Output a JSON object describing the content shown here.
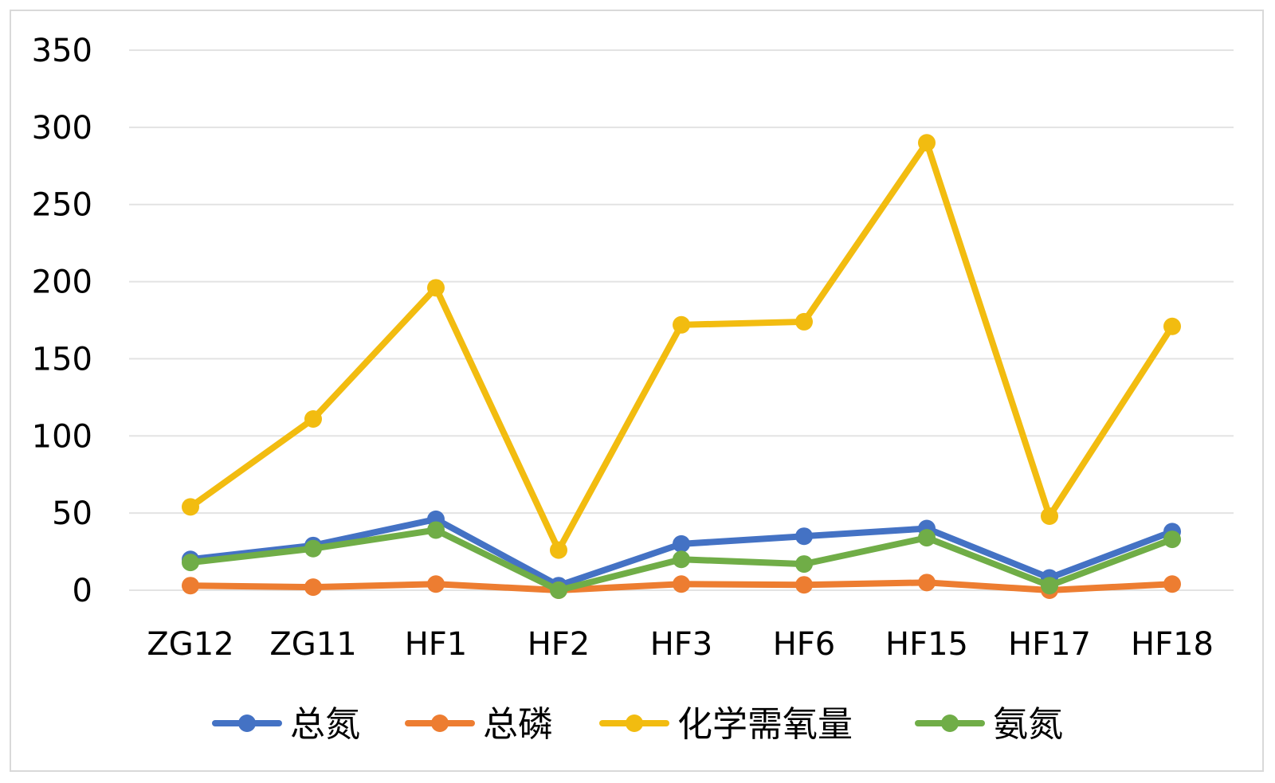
{
  "chart_data": {
    "type": "line",
    "categories": [
      "ZG12",
      "ZG11",
      "HF1",
      "HF2",
      "HF3",
      "HF6",
      "HF15",
      "HF17",
      "HF18"
    ],
    "series": [
      {
        "name": "总氮",
        "color": "#4472C4",
        "values": [
          20,
          29,
          46,
          3,
          30,
          35,
          40,
          8,
          38
        ]
      },
      {
        "name": "总磷",
        "color": "#ED7D31",
        "values": [
          3,
          2,
          4,
          0,
          4,
          3.5,
          5,
          0,
          4
        ]
      },
      {
        "name": "化学需氧量",
        "color": "#F2BC10",
        "values": [
          54,
          111,
          196,
          26,
          172,
          174,
          290,
          48,
          171
        ]
      },
      {
        "name": "氨氮",
        "color": "#70AD47",
        "values": [
          18,
          27,
          39,
          0,
          20,
          17,
          34,
          3,
          33
        ]
      }
    ],
    "ylim": [
      0,
      350
    ],
    "yticks": [
      "0",
      "50",
      "100",
      "150",
      "200",
      "250",
      "300",
      "350"
    ],
    "grid": true,
    "legend_position": "bottom"
  }
}
